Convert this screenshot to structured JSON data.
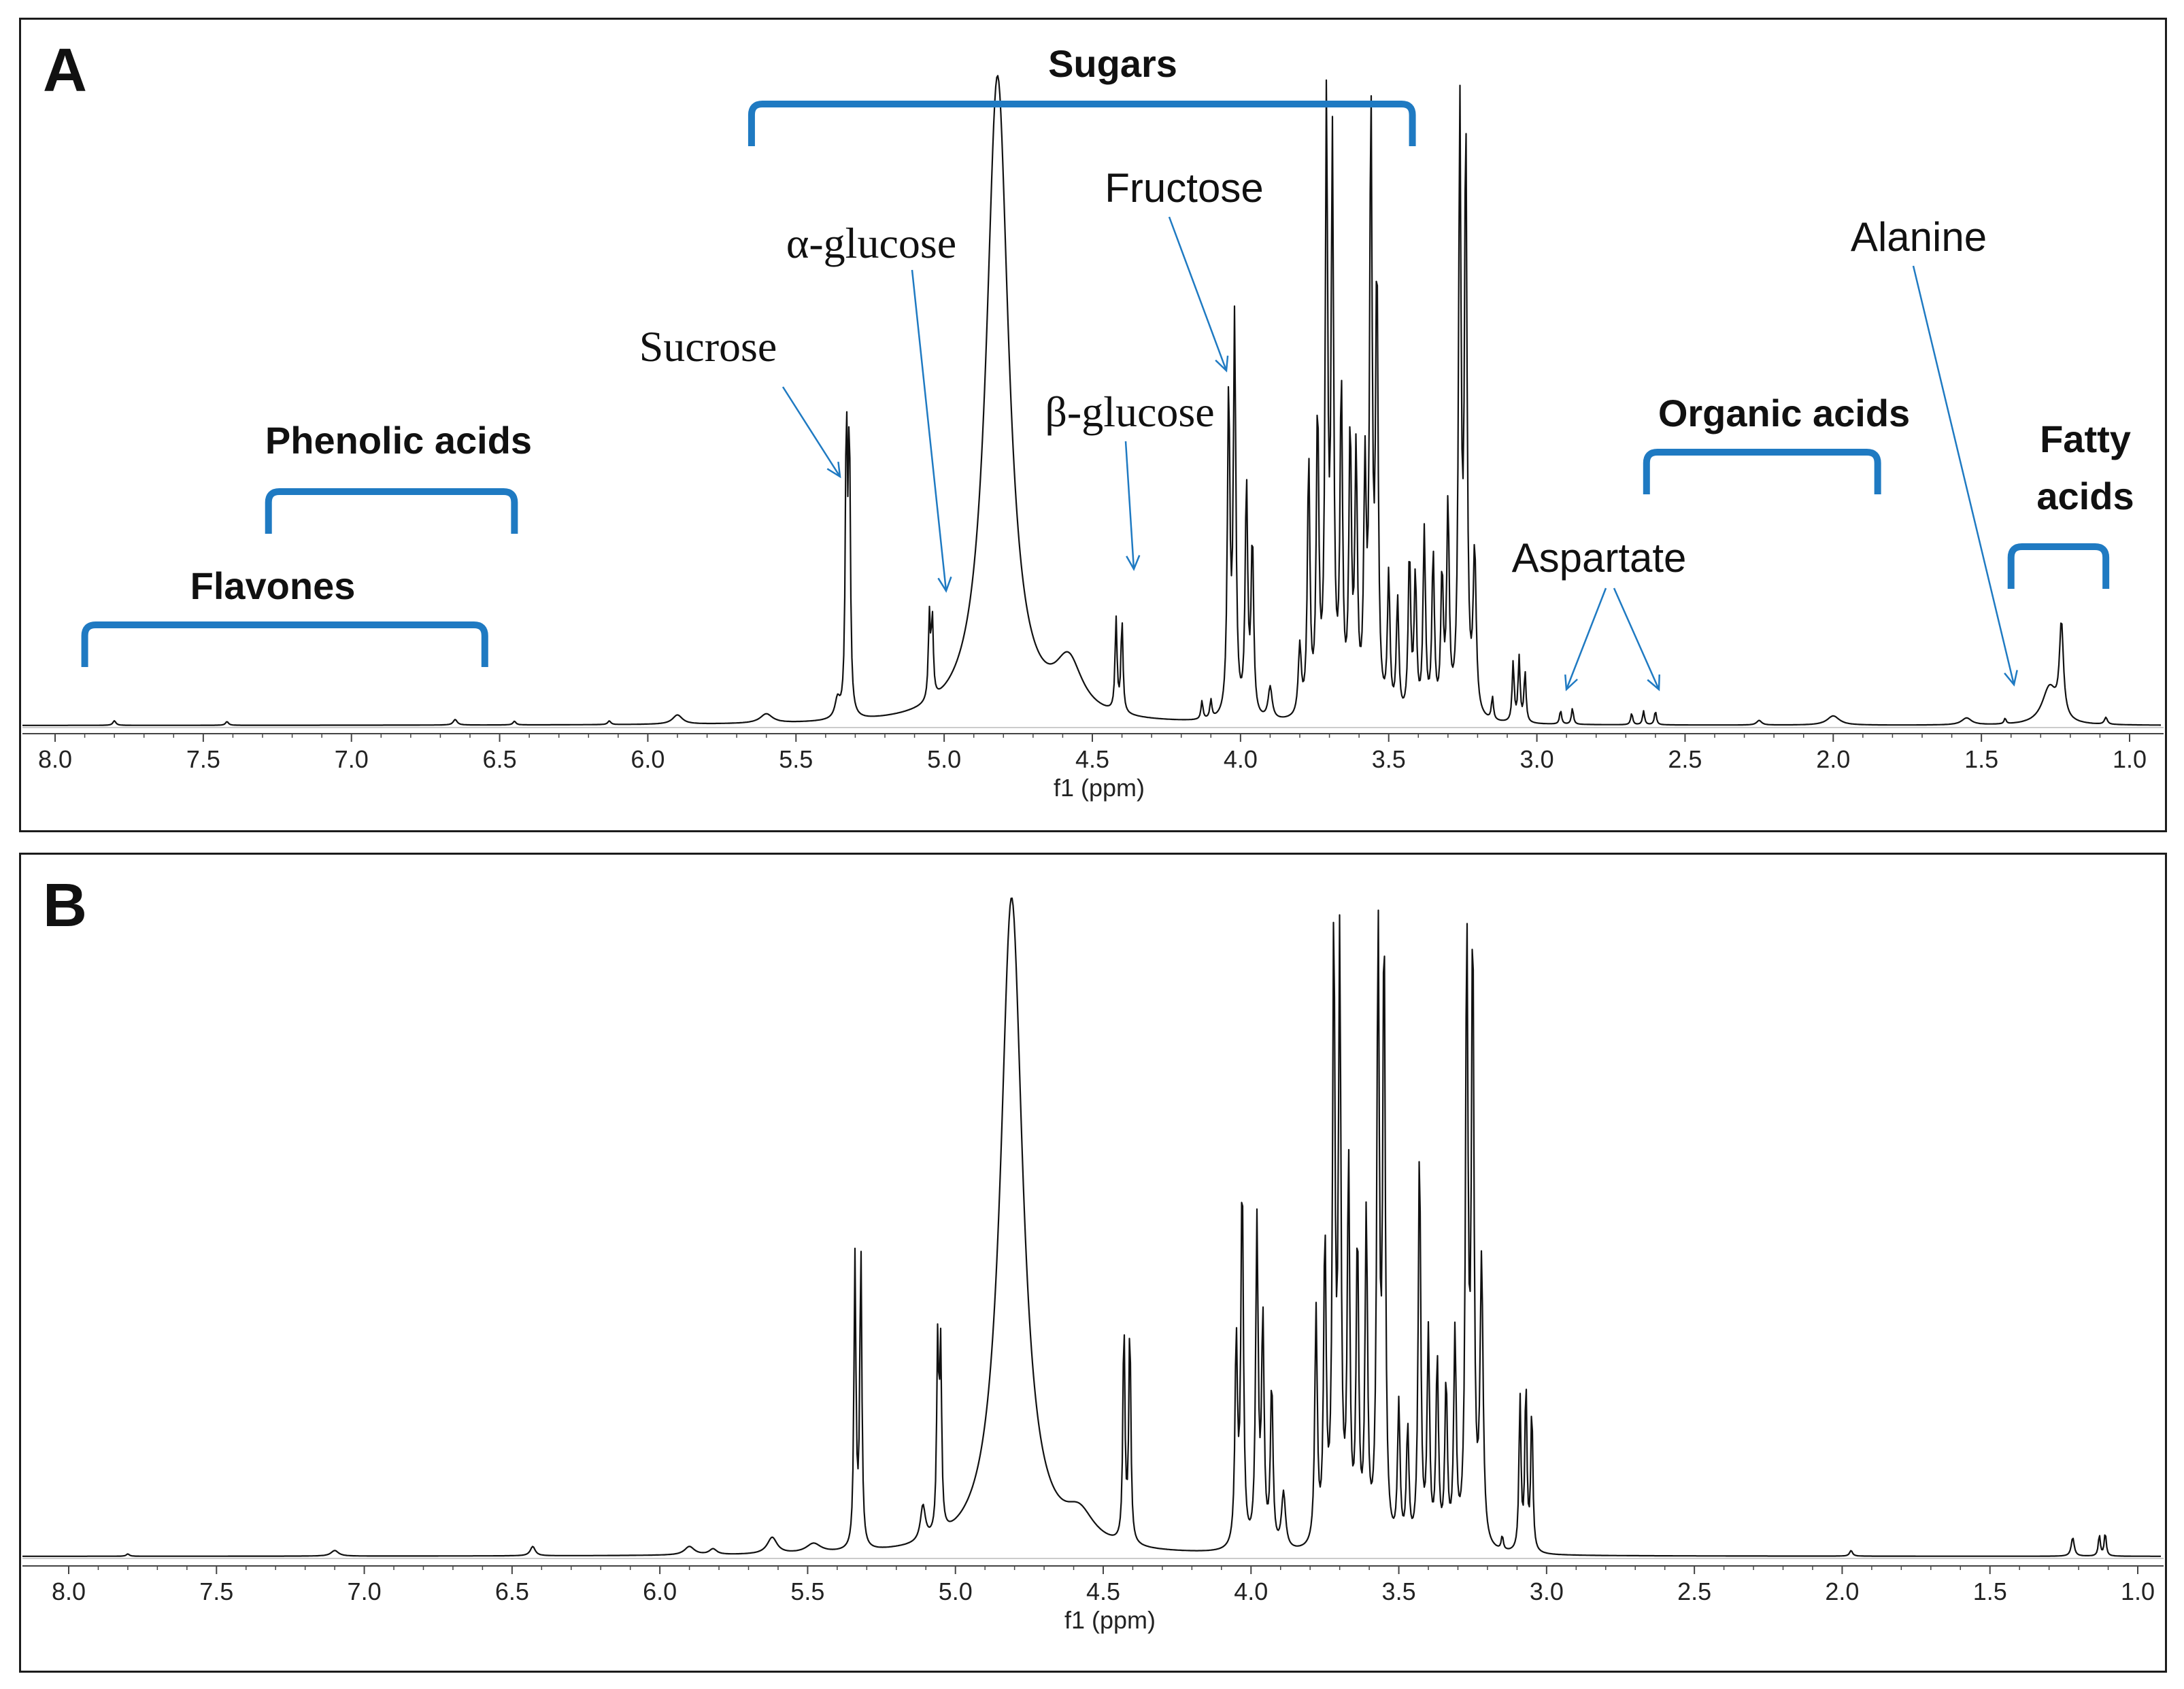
{
  "colors": {
    "annotation": "#1f7ac2",
    "spectrum": "#111111",
    "frame": "#1c1c1c"
  },
  "chart_data": [
    {
      "type": "line",
      "panel": "A",
      "title": "",
      "xlabel": "f1 (ppm)",
      "ylabel": "",
      "xlim": [
        8.0,
        1.0
      ],
      "ticks": [
        "8.0",
        "7.5",
        "7.0",
        "6.5",
        "6.0",
        "5.5",
        "5.0",
        "4.5",
        "4.0",
        "3.5",
        "3.0",
        "2.5",
        "2.0",
        "1.5",
        "1.0"
      ],
      "peaks": [
        {
          "ppm": 7.8,
          "h": 0.01,
          "w": 0.006
        },
        {
          "ppm": 7.42,
          "h": 0.008,
          "w": 0.006
        },
        {
          "ppm": 6.65,
          "h": 0.012,
          "w": 0.008
        },
        {
          "ppm": 6.45,
          "h": 0.008,
          "w": 0.006
        },
        {
          "ppm": 6.13,
          "h": 0.008,
          "w": 0.006
        },
        {
          "ppm": 5.9,
          "h": 0.02,
          "w": 0.02
        },
        {
          "ppm": 5.6,
          "h": 0.02,
          "w": 0.025
        },
        {
          "ppm": 5.36,
          "h": 0.04,
          "w": 0.01
        },
        {
          "ppm": 5.33,
          "h": 0.63,
          "w": 0.004
        },
        {
          "ppm": 5.32,
          "h": 0.6,
          "w": 0.004
        },
        {
          "ppm": 5.05,
          "h": 0.18,
          "w": 0.004
        },
        {
          "ppm": 5.04,
          "h": 0.17,
          "w": 0.004
        },
        {
          "ppm": 4.82,
          "h": 1.4,
          "w": 0.045
        },
        {
          "ppm": 4.58,
          "h": 0.11,
          "w": 0.055
        },
        {
          "ppm": 4.42,
          "h": 0.2,
          "w": 0.004
        },
        {
          "ppm": 4.4,
          "h": 0.2,
          "w": 0.004
        },
        {
          "ppm": 4.13,
          "h": 0.04,
          "w": 0.004
        },
        {
          "ppm": 4.1,
          "h": 0.04,
          "w": 0.004
        },
        {
          "ppm": 4.04,
          "h": 0.7,
          "w": 0.005
        },
        {
          "ppm": 4.02,
          "h": 0.85,
          "w": 0.005
        },
        {
          "ppm": 3.98,
          "h": 0.5,
          "w": 0.005
        },
        {
          "ppm": 3.96,
          "h": 0.38,
          "w": 0.005
        },
        {
          "ppm": 3.9,
          "h": 0.07,
          "w": 0.008
        },
        {
          "ppm": 3.8,
          "h": 0.15,
          "w": 0.006
        },
        {
          "ppm": 3.77,
          "h": 0.55,
          "w": 0.005
        },
        {
          "ppm": 3.74,
          "h": 0.65,
          "w": 0.005
        },
        {
          "ppm": 3.71,
          "h": 1.3,
          "w": 0.005
        },
        {
          "ppm": 3.69,
          "h": 1.2,
          "w": 0.005
        },
        {
          "ppm": 3.66,
          "h": 0.7,
          "w": 0.005
        },
        {
          "ppm": 3.63,
          "h": 0.6,
          "w": 0.005
        },
        {
          "ppm": 3.61,
          "h": 0.55,
          "w": 0.005
        },
        {
          "ppm": 3.58,
          "h": 0.5,
          "w": 0.005
        },
        {
          "ppm": 3.56,
          "h": 1.3,
          "w": 0.005
        },
        {
          "ppm": 3.54,
          "h": 0.95,
          "w": 0.005
        },
        {
          "ppm": 3.5,
          "h": 0.3,
          "w": 0.005
        },
        {
          "ppm": 3.47,
          "h": 0.25,
          "w": 0.005
        },
        {
          "ppm": 3.43,
          "h": 0.35,
          "w": 0.005
        },
        {
          "ppm": 3.41,
          "h": 0.3,
          "w": 0.005
        },
        {
          "ppm": 3.38,
          "h": 0.4,
          "w": 0.005
        },
        {
          "ppm": 3.35,
          "h": 0.35,
          "w": 0.005
        },
        {
          "ppm": 3.32,
          "h": 0.3,
          "w": 0.005
        },
        {
          "ppm": 3.3,
          "h": 0.45,
          "w": 0.005
        },
        {
          "ppm": 3.26,
          "h": 1.3,
          "w": 0.005
        },
        {
          "ppm": 3.24,
          "h": 1.25,
          "w": 0.005
        },
        {
          "ppm": 3.21,
          "h": 0.35,
          "w": 0.006
        },
        {
          "ppm": 3.15,
          "h": 0.05,
          "w": 0.004
        },
        {
          "ppm": 3.08,
          "h": 0.13,
          "w": 0.004
        },
        {
          "ppm": 3.06,
          "h": 0.14,
          "w": 0.004
        },
        {
          "ppm": 3.04,
          "h": 0.11,
          "w": 0.004
        },
        {
          "ppm": 2.92,
          "h": 0.03,
          "w": 0.004
        },
        {
          "ppm": 2.88,
          "h": 0.035,
          "w": 0.004
        },
        {
          "ppm": 2.68,
          "h": 0.025,
          "w": 0.004
        },
        {
          "ppm": 2.64,
          "h": 0.03,
          "w": 0.004
        },
        {
          "ppm": 2.6,
          "h": 0.03,
          "w": 0.004
        },
        {
          "ppm": 2.25,
          "h": 0.01,
          "w": 0.01
        },
        {
          "ppm": 2.0,
          "h": 0.02,
          "w": 0.025
        },
        {
          "ppm": 1.55,
          "h": 0.015,
          "w": 0.02
        },
        {
          "ppm": 1.42,
          "h": 0.012,
          "w": 0.004
        },
        {
          "ppm": 1.27,
          "h": 0.08,
          "w": 0.03
        },
        {
          "ppm": 1.23,
          "h": 0.2,
          "w": 0.008
        },
        {
          "ppm": 1.08,
          "h": 0.015,
          "w": 0.006
        }
      ],
      "groups": [
        {
          "label": "Flavones",
          "from": 7.9,
          "to": 6.55
        },
        {
          "label": "Phenolic acids",
          "from": 7.28,
          "to": 6.45
        },
        {
          "label": "Sugars",
          "from": 5.65,
          "to": 3.42
        },
        {
          "label": "Organic acids",
          "from": 2.63,
          "to": 1.85
        },
        {
          "label": "Fatty acids",
          "from": 1.4,
          "to": 1.08
        }
      ],
      "compounds": [
        {
          "label": "Sucrose",
          "target_ppm": 5.35
        },
        {
          "label": "α-glucose",
          "target_ppm": 5.04
        },
        {
          "label": "β-glucose",
          "target_ppm": 4.42
        },
        {
          "label": "Fructose",
          "target_ppm": 4.09
        },
        {
          "label": "Aspartate",
          "target_ppm": [
            2.92,
            2.63
          ]
        },
        {
          "label": "Alanine",
          "target_ppm": 1.42
        }
      ]
    },
    {
      "type": "line",
      "panel": "B",
      "title": "",
      "xlabel": "f1 (ppm)",
      "ylabel": "",
      "xlim": [
        8.0,
        1.0
      ],
      "ticks": [
        "8.0",
        "7.5",
        "7.0",
        "6.5",
        "6.0",
        "5.5",
        "5.0",
        "4.5",
        "4.0",
        "3.5",
        "3.0",
        "2.5",
        "2.0",
        "1.5",
        "1.0"
      ],
      "peaks": [
        {
          "ppm": 7.8,
          "h": 0.005,
          "w": 0.006
        },
        {
          "ppm": 7.1,
          "h": 0.012,
          "w": 0.015
        },
        {
          "ppm": 6.43,
          "h": 0.02,
          "w": 0.01
        },
        {
          "ppm": 5.9,
          "h": 0.018,
          "w": 0.02
        },
        {
          "ppm": 5.82,
          "h": 0.012,
          "w": 0.015
        },
        {
          "ppm": 5.62,
          "h": 0.035,
          "w": 0.02
        },
        {
          "ppm": 5.48,
          "h": 0.02,
          "w": 0.03
        },
        {
          "ppm": 5.34,
          "h": 0.62,
          "w": 0.004
        },
        {
          "ppm": 5.32,
          "h": 0.64,
          "w": 0.004
        },
        {
          "ppm": 5.11,
          "h": 0.075,
          "w": 0.01
        },
        {
          "ppm": 5.06,
          "h": 0.4,
          "w": 0.004
        },
        {
          "ppm": 5.05,
          "h": 0.38,
          "w": 0.004
        },
        {
          "ppm": 4.81,
          "h": 1.4,
          "w": 0.045
        },
        {
          "ppm": 4.58,
          "h": 0.06,
          "w": 0.06
        },
        {
          "ppm": 4.43,
          "h": 0.47,
          "w": 0.004
        },
        {
          "ppm": 4.41,
          "h": 0.47,
          "w": 0.004
        },
        {
          "ppm": 4.05,
          "h": 0.44,
          "w": 0.005
        },
        {
          "ppm": 4.03,
          "h": 0.79,
          "w": 0.005
        },
        {
          "ppm": 3.98,
          "h": 0.69,
          "w": 0.005
        },
        {
          "ppm": 3.96,
          "h": 0.48,
          "w": 0.005
        },
        {
          "ppm": 3.93,
          "h": 0.35,
          "w": 0.005
        },
        {
          "ppm": 3.89,
          "h": 0.12,
          "w": 0.008
        },
        {
          "ppm": 3.78,
          "h": 0.5,
          "w": 0.005
        },
        {
          "ppm": 3.75,
          "h": 0.65,
          "w": 0.005
        },
        {
          "ppm": 3.72,
          "h": 1.3,
          "w": 0.005
        },
        {
          "ppm": 3.7,
          "h": 1.25,
          "w": 0.005
        },
        {
          "ppm": 3.67,
          "h": 0.8,
          "w": 0.005
        },
        {
          "ppm": 3.64,
          "h": 0.65,
          "w": 0.005
        },
        {
          "ppm": 3.61,
          "h": 0.7,
          "w": 0.005
        },
        {
          "ppm": 3.57,
          "h": 1.3,
          "w": 0.005
        },
        {
          "ppm": 3.55,
          "h": 1.3,
          "w": 0.005
        },
        {
          "ppm": 3.5,
          "h": 0.3,
          "w": 0.005
        },
        {
          "ppm": 3.47,
          "h": 0.25,
          "w": 0.005
        },
        {
          "ppm": 3.43,
          "h": 0.85,
          "w": 0.005
        },
        {
          "ppm": 3.4,
          "h": 0.45,
          "w": 0.005
        },
        {
          "ppm": 3.37,
          "h": 0.4,
          "w": 0.005
        },
        {
          "ppm": 3.34,
          "h": 0.35,
          "w": 0.005
        },
        {
          "ppm": 3.31,
          "h": 0.45,
          "w": 0.005
        },
        {
          "ppm": 3.27,
          "h": 1.3,
          "w": 0.005
        },
        {
          "ppm": 3.25,
          "h": 1.3,
          "w": 0.005
        },
        {
          "ppm": 3.22,
          "h": 0.6,
          "w": 0.006
        },
        {
          "ppm": 3.15,
          "h": 0.03,
          "w": 0.004
        },
        {
          "ppm": 3.09,
          "h": 0.33,
          "w": 0.004
        },
        {
          "ppm": 3.07,
          "h": 0.36,
          "w": 0.004
        },
        {
          "ppm": 3.05,
          "h": 0.31,
          "w": 0.004
        },
        {
          "ppm": 1.97,
          "h": 0.012,
          "w": 0.006
        },
        {
          "ppm": 1.22,
          "h": 0.04,
          "w": 0.006
        },
        {
          "ppm": 1.13,
          "h": 0.045,
          "w": 0.004
        },
        {
          "ppm": 1.11,
          "h": 0.05,
          "w": 0.004
        }
      ]
    }
  ]
}
